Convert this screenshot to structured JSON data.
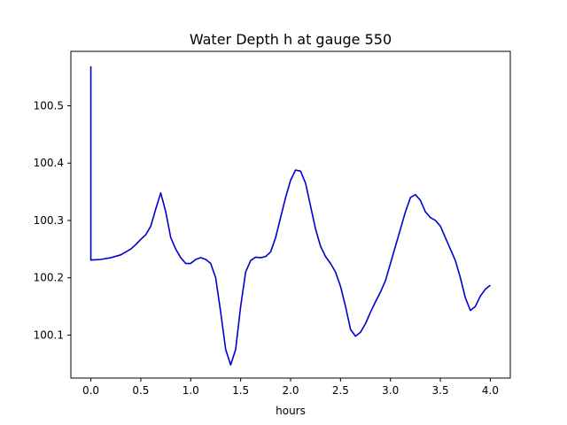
{
  "chart_data": {
    "type": "line",
    "title": "Water Depth h at gauge 550",
    "xlabel": "hours",
    "ylabel": "",
    "xlim": [
      -0.2,
      4.2
    ],
    "ylim": [
      100.025,
      100.595
    ],
    "xticks": [
      0.0,
      0.5,
      1.0,
      1.5,
      2.0,
      2.5,
      3.0,
      3.5,
      4.0
    ],
    "xtick_labels": [
      "0.0",
      "0.5",
      "1.0",
      "1.5",
      "2.0",
      "2.5",
      "3.0",
      "3.5",
      "4.0"
    ],
    "yticks": [
      100.1,
      100.2,
      100.3,
      100.4,
      100.5
    ],
    "ytick_labels": [
      "100.1",
      "100.2",
      "100.3",
      "100.4",
      "100.5"
    ],
    "grid": false,
    "series": [
      {
        "name": "",
        "color": "#0000cc",
        "x": [
          0.0,
          0.0,
          0.0,
          0.1,
          0.2,
          0.3,
          0.4,
          0.45,
          0.5,
          0.55,
          0.6,
          0.65,
          0.7,
          0.75,
          0.8,
          0.85,
          0.9,
          0.95,
          1.0,
          1.05,
          1.1,
          1.15,
          1.2,
          1.25,
          1.3,
          1.35,
          1.4,
          1.45,
          1.5,
          1.55,
          1.6,
          1.65,
          1.7,
          1.75,
          1.8,
          1.85,
          1.9,
          1.95,
          2.0,
          2.05,
          2.1,
          2.15,
          2.2,
          2.25,
          2.3,
          2.35,
          2.4,
          2.45,
          2.5,
          2.55,
          2.6,
          2.65,
          2.7,
          2.75,
          2.8,
          2.85,
          2.9,
          2.95,
          3.0,
          3.05,
          3.1,
          3.15,
          3.2,
          3.25,
          3.3,
          3.35,
          3.4,
          3.45,
          3.5,
          3.55,
          3.6,
          3.65,
          3.7,
          3.75,
          3.8,
          3.85,
          3.9,
          3.95,
          4.0
        ],
        "y": [
          100.231,
          100.568,
          100.231,
          100.232,
          100.235,
          100.24,
          100.25,
          100.258,
          100.267,
          100.275,
          100.29,
          100.32,
          100.348,
          100.315,
          100.27,
          100.25,
          100.235,
          100.225,
          100.225,
          100.232,
          100.235,
          100.232,
          100.225,
          100.2,
          100.14,
          100.075,
          100.048,
          100.075,
          100.15,
          100.21,
          100.23,
          100.236,
          100.235,
          100.237,
          100.245,
          100.27,
          100.305,
          100.34,
          100.37,
          100.388,
          100.386,
          100.365,
          100.325,
          100.285,
          100.255,
          100.237,
          100.225,
          100.21,
          100.185,
          100.15,
          100.11,
          100.098,
          100.105,
          100.12,
          100.14,
          100.158,
          100.175,
          100.195,
          100.225,
          100.255,
          100.285,
          100.315,
          100.34,
          100.345,
          100.335,
          100.315,
          100.305,
          100.3,
          100.29,
          100.27,
          100.25,
          100.23,
          100.2,
          100.165,
          100.143,
          100.15,
          100.168,
          100.18,
          100.187
        ]
      }
    ]
  }
}
